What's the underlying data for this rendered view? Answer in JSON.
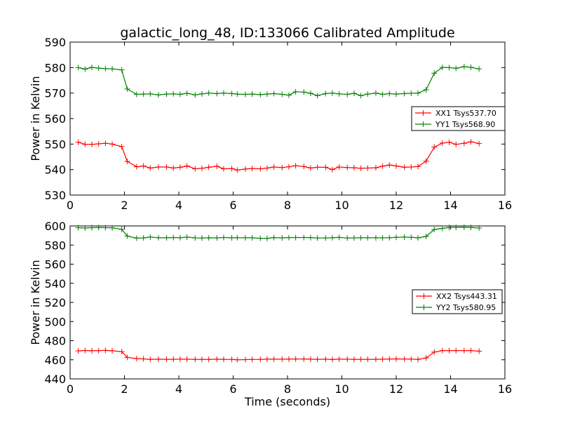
{
  "figure": {
    "title": "galactic_long_48, ID:133066 Calibrated Amplitude",
    "xlabel": "Time (seconds)"
  },
  "chart_data": [
    {
      "type": "line",
      "title": "galactic_long_48, ID:133066 Calibrated Amplitude",
      "xlabel": "",
      "ylabel": "Power in Kelvin",
      "xlim": [
        0,
        16
      ],
      "ylim": [
        530,
        590
      ],
      "xticks": [
        0,
        2,
        4,
        6,
        8,
        10,
        12,
        14,
        16
      ],
      "yticks": [
        530,
        540,
        550,
        560,
        570,
        580,
        590
      ],
      "grid": false,
      "legend_position": "center-right",
      "x": [
        0.3,
        0.55,
        0.8,
        1.05,
        1.3,
        1.55,
        1.9,
        2.1,
        2.45,
        2.7,
        2.95,
        3.25,
        3.55,
        3.8,
        4.05,
        4.3,
        4.6,
        4.85,
        5.1,
        5.4,
        5.65,
        5.95,
        6.15,
        6.45,
        6.7,
        7.0,
        7.25,
        7.5,
        7.8,
        8.05,
        8.3,
        8.6,
        8.85,
        9.1,
        9.4,
        9.65,
        9.9,
        10.2,
        10.45,
        10.7,
        10.95,
        11.25,
        11.5,
        11.75,
        12.0,
        12.3,
        12.55,
        12.8,
        13.1,
        13.4,
        13.7,
        13.95,
        14.2,
        14.5,
        14.75,
        15.05
      ],
      "series": [
        {
          "name": "XX1 Tsys537.70",
          "color": "#ff0000",
          "values": [
            550.7,
            549.9,
            549.9,
            550.1,
            550.3,
            550.0,
            549.0,
            543.2,
            541.1,
            541.4,
            540.6,
            541.0,
            541.0,
            540.6,
            540.9,
            541.4,
            540.3,
            540.5,
            540.9,
            541.3,
            540.3,
            540.4,
            539.8,
            540.2,
            540.4,
            540.3,
            540.6,
            541.0,
            540.8,
            541.1,
            541.5,
            541.2,
            540.6,
            540.9,
            540.9,
            540.0,
            541.0,
            540.8,
            540.7,
            540.5,
            540.6,
            540.7,
            541.3,
            541.8,
            541.4,
            540.9,
            541.0,
            541.2,
            543.3,
            548.8,
            550.4,
            550.7,
            549.9,
            550.3,
            550.9,
            550.2
          ]
        },
        {
          "name": "YY1 Tsys568.90",
          "color": "#008000",
          "values": [
            580.0,
            579.4,
            580.1,
            579.8,
            579.6,
            579.5,
            579.1,
            571.6,
            569.5,
            569.6,
            569.7,
            569.3,
            569.6,
            569.7,
            569.5,
            569.9,
            569.3,
            569.7,
            570.0,
            569.8,
            570.0,
            569.8,
            569.6,
            569.5,
            569.6,
            569.4,
            569.6,
            569.8,
            569.5,
            569.2,
            570.5,
            570.4,
            569.9,
            569.0,
            569.8,
            570.0,
            569.7,
            569.5,
            569.9,
            569.0,
            569.6,
            570.0,
            569.5,
            569.8,
            569.6,
            569.8,
            569.9,
            570.0,
            571.3,
            577.8,
            580.1,
            580.0,
            579.7,
            580.4,
            580.1,
            579.5
          ]
        }
      ]
    },
    {
      "type": "line",
      "title": "",
      "xlabel": "Time (seconds)",
      "ylabel": "Power in Kelvin",
      "xlim": [
        0,
        16
      ],
      "ylim": [
        440,
        600
      ],
      "xticks": [
        0,
        2,
        4,
        6,
        8,
        10,
        12,
        14,
        16
      ],
      "yticks": [
        440,
        460,
        480,
        500,
        520,
        540,
        560,
        580,
        600
      ],
      "grid": false,
      "legend_position": "center-right",
      "x": [
        0.3,
        0.55,
        0.8,
        1.05,
        1.3,
        1.55,
        1.9,
        2.1,
        2.45,
        2.7,
        2.95,
        3.25,
        3.55,
        3.8,
        4.05,
        4.3,
        4.6,
        4.85,
        5.1,
        5.4,
        5.65,
        5.95,
        6.15,
        6.45,
        6.7,
        7.0,
        7.25,
        7.5,
        7.8,
        8.05,
        8.3,
        8.6,
        8.85,
        9.1,
        9.4,
        9.65,
        9.9,
        10.2,
        10.45,
        10.7,
        10.95,
        11.25,
        11.5,
        11.75,
        12.0,
        12.3,
        12.55,
        12.8,
        13.1,
        13.4,
        13.7,
        13.95,
        14.2,
        14.5,
        14.75,
        15.05
      ],
      "series": [
        {
          "name": "XX2 Tsys443.31",
          "color": "#ff0000",
          "values": [
            469.3,
            469.7,
            469.4,
            469.6,
            469.8,
            469.4,
            468.5,
            462.5,
            461.2,
            460.9,
            460.4,
            460.6,
            460.5,
            460.5,
            460.6,
            460.6,
            460.4,
            460.4,
            460.3,
            460.6,
            460.4,
            460.4,
            460.0,
            460.2,
            460.3,
            460.4,
            460.6,
            460.6,
            460.6,
            460.7,
            460.8,
            460.8,
            460.6,
            460.5,
            460.6,
            460.3,
            460.6,
            460.6,
            460.4,
            460.5,
            460.5,
            460.5,
            460.6,
            460.8,
            460.9,
            460.8,
            460.7,
            460.4,
            461.9,
            468.1,
            469.6,
            469.6,
            469.6,
            469.6,
            469.6,
            469.0
          ]
        },
        {
          "name": "YY2 Tsys580.95",
          "color": "#008000",
          "values": [
            598.2,
            597.8,
            598.2,
            598.3,
            598.2,
            598.0,
            596.5,
            589.4,
            587.2,
            587.5,
            588.4,
            587.7,
            587.6,
            587.9,
            587.7,
            588.3,
            587.5,
            587.4,
            587.6,
            587.5,
            587.9,
            587.6,
            587.7,
            587.6,
            587.6,
            587.1,
            587.0,
            587.8,
            587.5,
            587.8,
            587.9,
            587.9,
            587.8,
            587.4,
            587.4,
            587.7,
            588.0,
            587.4,
            587.5,
            587.6,
            587.6,
            587.6,
            587.5,
            587.7,
            588.1,
            588.3,
            588.1,
            587.6,
            589.0,
            596.3,
            597.4,
            598.4,
            598.5,
            598.6,
            598.4,
            597.8
          ]
        }
      ]
    }
  ]
}
